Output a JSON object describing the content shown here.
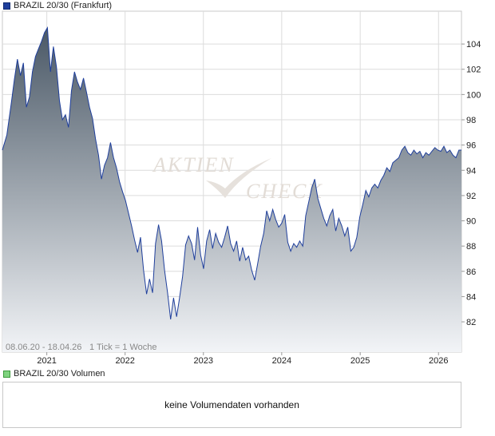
{
  "legend": {
    "price_label": "BRAZIL 20/30 (Frankfurt)",
    "volume_label": "BRAZIL 20/30 Volumen"
  },
  "info": {
    "range": "08.06.20 - 18.04.26",
    "tick_note": "1 Tick = 1 Woche"
  },
  "watermark": {
    "word1": "AKTIEN",
    "word2": "CHECK"
  },
  "volume": {
    "message": "keine Volumendaten vorhanden"
  },
  "colors": {
    "line": "#1f3f9c",
    "area_top": "#4a5866",
    "area_bottom": "#f2f4f7",
    "grid": "#dcdcdc"
  },
  "chart_data": {
    "type": "area",
    "title": "BRAZIL 20/30 (Frankfurt)",
    "x_start": "2020-06-08",
    "x_end": "2026-04-18",
    "xticks": [
      "2021",
      "2022",
      "2023",
      "2024",
      "2025",
      "2026"
    ],
    "yticks": [
      82,
      84,
      86,
      88,
      90,
      92,
      94,
      96,
      98,
      100,
      102,
      104
    ],
    "ylim": [
      79.6,
      106.6
    ],
    "y_axis_side": "right",
    "grid": true,
    "series": [
      {
        "name": "BRAZIL 20/30",
        "points": [
          [
            "2020-06-08",
            95.6
          ],
          [
            "2020-06-29",
            96.8
          ],
          [
            "2020-07-20",
            99.4
          ],
          [
            "2020-08-03",
            101.2
          ],
          [
            "2020-08-17",
            102.8
          ],
          [
            "2020-08-31",
            101.5
          ],
          [
            "2020-09-14",
            102.5
          ],
          [
            "2020-09-28",
            99.0
          ],
          [
            "2020-10-12",
            99.8
          ],
          [
            "2020-10-26",
            101.8
          ],
          [
            "2020-11-09",
            103.0
          ],
          [
            "2020-11-23",
            103.6
          ],
          [
            "2020-12-07",
            104.2
          ],
          [
            "2020-12-21",
            104.9
          ],
          [
            "2021-01-04",
            105.3
          ],
          [
            "2021-01-18",
            101.8
          ],
          [
            "2021-02-01",
            103.8
          ],
          [
            "2021-02-15",
            102.2
          ],
          [
            "2021-03-01",
            99.5
          ],
          [
            "2021-03-15",
            98.0
          ],
          [
            "2021-03-29",
            98.4
          ],
          [
            "2021-04-12",
            97.4
          ],
          [
            "2021-04-26",
            100.3
          ],
          [
            "2021-05-10",
            101.8
          ],
          [
            "2021-05-24",
            101.0
          ],
          [
            "2021-06-07",
            100.4
          ],
          [
            "2021-06-21",
            101.3
          ],
          [
            "2021-07-05",
            100.2
          ],
          [
            "2021-07-19",
            99.0
          ],
          [
            "2021-08-02",
            98.1
          ],
          [
            "2021-08-16",
            96.5
          ],
          [
            "2021-08-30",
            95.2
          ],
          [
            "2021-09-13",
            93.3
          ],
          [
            "2021-09-27",
            94.4
          ],
          [
            "2021-10-11",
            95.0
          ],
          [
            "2021-10-25",
            96.2
          ],
          [
            "2021-11-08",
            95.0
          ],
          [
            "2021-11-22",
            94.2
          ],
          [
            "2021-12-06",
            93.1
          ],
          [
            "2021-12-20",
            92.3
          ],
          [
            "2022-01-03",
            91.6
          ],
          [
            "2022-01-17",
            90.6
          ],
          [
            "2022-01-31",
            89.6
          ],
          [
            "2022-02-14",
            88.5
          ],
          [
            "2022-02-28",
            87.5
          ],
          [
            "2022-03-14",
            88.7
          ],
          [
            "2022-03-28",
            86.1
          ],
          [
            "2022-04-11",
            84.2
          ],
          [
            "2022-04-25",
            85.4
          ],
          [
            "2022-05-09",
            84.3
          ],
          [
            "2022-05-23",
            88.2
          ],
          [
            "2022-06-06",
            89.7
          ],
          [
            "2022-06-20",
            88.4
          ],
          [
            "2022-07-04",
            86.1
          ],
          [
            "2022-07-18",
            84.3
          ],
          [
            "2022-08-01",
            82.2
          ],
          [
            "2022-08-15",
            83.9
          ],
          [
            "2022-08-29",
            82.4
          ],
          [
            "2022-09-12",
            83.9
          ],
          [
            "2022-09-26",
            85.6
          ],
          [
            "2022-10-10",
            88.1
          ],
          [
            "2022-10-24",
            88.8
          ],
          [
            "2022-11-07",
            88.2
          ],
          [
            "2022-11-21",
            86.9
          ],
          [
            "2022-12-05",
            89.5
          ],
          [
            "2022-12-19",
            87.3
          ],
          [
            "2023-01-02",
            86.2
          ],
          [
            "2023-01-16",
            88.4
          ],
          [
            "2023-01-30",
            89.3
          ],
          [
            "2023-02-13",
            87.8
          ],
          [
            "2023-02-27",
            89.0
          ],
          [
            "2023-03-13",
            88.3
          ],
          [
            "2023-03-27",
            87.9
          ],
          [
            "2023-04-10",
            88.7
          ],
          [
            "2023-04-24",
            89.6
          ],
          [
            "2023-05-08",
            88.2
          ],
          [
            "2023-05-22",
            87.6
          ],
          [
            "2023-06-05",
            88.4
          ],
          [
            "2023-06-19",
            86.8
          ],
          [
            "2023-07-03",
            87.9
          ],
          [
            "2023-07-17",
            86.9
          ],
          [
            "2023-07-31",
            87.2
          ],
          [
            "2023-08-14",
            86.1
          ],
          [
            "2023-08-28",
            85.3
          ],
          [
            "2023-09-11",
            86.6
          ],
          [
            "2023-09-25",
            88.0
          ],
          [
            "2023-10-09",
            89.0
          ],
          [
            "2023-10-23",
            90.8
          ],
          [
            "2023-11-06",
            90.0
          ],
          [
            "2023-11-20",
            90.9
          ],
          [
            "2023-12-04",
            90.1
          ],
          [
            "2023-12-18",
            89.5
          ],
          [
            "2024-01-01",
            89.8
          ],
          [
            "2024-01-15",
            90.5
          ],
          [
            "2024-01-29",
            88.3
          ],
          [
            "2024-02-12",
            87.6
          ],
          [
            "2024-02-26",
            88.2
          ],
          [
            "2024-03-11",
            87.9
          ],
          [
            "2024-03-25",
            88.4
          ],
          [
            "2024-04-08",
            88.0
          ],
          [
            "2024-04-22",
            90.4
          ],
          [
            "2024-05-06",
            91.5
          ],
          [
            "2024-05-20",
            92.6
          ],
          [
            "2024-06-03",
            93.3
          ],
          [
            "2024-06-17",
            91.8
          ],
          [
            "2024-07-01",
            91.0
          ],
          [
            "2024-07-15",
            90.2
          ],
          [
            "2024-07-29",
            89.6
          ],
          [
            "2024-08-12",
            90.4
          ],
          [
            "2024-08-26",
            90.9
          ],
          [
            "2024-09-09",
            89.2
          ],
          [
            "2024-09-23",
            90.2
          ],
          [
            "2024-10-07",
            89.6
          ],
          [
            "2024-10-21",
            88.8
          ],
          [
            "2024-11-04",
            89.5
          ],
          [
            "2024-11-18",
            87.6
          ],
          [
            "2024-12-02",
            87.9
          ],
          [
            "2024-12-16",
            88.7
          ],
          [
            "2024-12-30",
            90.3
          ],
          [
            "2025-01-13",
            91.3
          ],
          [
            "2025-01-27",
            92.4
          ],
          [
            "2025-02-10",
            91.9
          ],
          [
            "2025-02-24",
            92.6
          ],
          [
            "2025-03-10",
            92.9
          ],
          [
            "2025-03-24",
            92.6
          ],
          [
            "2025-04-07",
            93.2
          ],
          [
            "2025-04-21",
            93.6
          ],
          [
            "2025-05-05",
            94.2
          ],
          [
            "2025-05-19",
            93.9
          ],
          [
            "2025-06-02",
            94.6
          ],
          [
            "2025-06-16",
            94.8
          ],
          [
            "2025-06-30",
            95.0
          ],
          [
            "2025-07-14",
            95.6
          ],
          [
            "2025-07-28",
            95.9
          ],
          [
            "2025-08-11",
            95.4
          ],
          [
            "2025-08-25",
            95.2
          ],
          [
            "2025-09-08",
            95.6
          ],
          [
            "2025-09-22",
            95.3
          ],
          [
            "2025-10-06",
            95.5
          ],
          [
            "2025-10-20",
            95.0
          ],
          [
            "2025-11-03",
            95.4
          ],
          [
            "2025-11-17",
            95.2
          ],
          [
            "2025-12-01",
            95.5
          ],
          [
            "2025-12-15",
            95.8
          ],
          [
            "2025-12-29",
            95.6
          ],
          [
            "2026-01-12",
            95.5
          ],
          [
            "2026-01-26",
            95.9
          ],
          [
            "2026-02-09",
            95.4
          ],
          [
            "2026-02-23",
            95.6
          ],
          [
            "2026-03-09",
            95.2
          ],
          [
            "2026-03-23",
            95.0
          ],
          [
            "2026-04-06",
            95.6
          ],
          [
            "2026-04-18",
            95.6
          ]
        ]
      }
    ]
  }
}
